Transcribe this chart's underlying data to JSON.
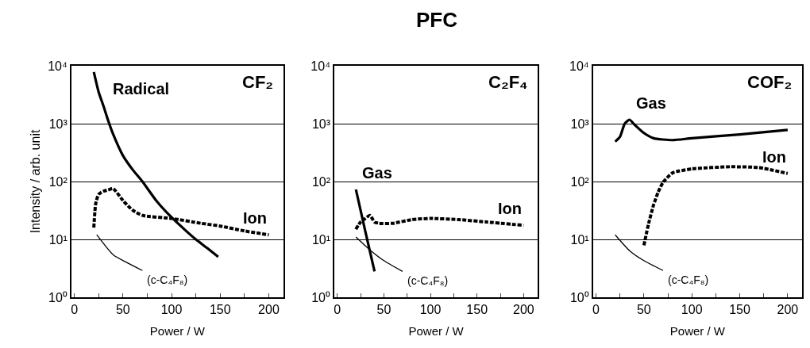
{
  "chart_data": [
    {
      "type": "line",
      "title": "CF₂",
      "xlabel": "Power / W",
      "ylabel": "Intensity / arb. unit",
      "log": "y",
      "grid": "y",
      "xlim": [
        -3,
        215
      ],
      "ylim": [
        1,
        10000
      ],
      "xticks": [
        0,
        {
          "value": 25,
          "label": null
        },
        50,
        {
          "value": 75,
          "label": null
        },
        100,
        {
          "value": 125,
          "label": null
        },
        150,
        {
          "value": 175,
          "label": null
        },
        200
      ],
      "yticks": [
        {
          "value": 1,
          "label": "10⁰"
        },
        {
          "value": 10,
          "label": "10¹"
        },
        {
          "value": 100,
          "label": "10²"
        },
        {
          "value": 1000,
          "label": "10³"
        },
        {
          "value": 10000,
          "label": "10⁴"
        }
      ],
      "series": [
        {
          "name": "Radical",
          "color": "#000000",
          "line_style": "solid",
          "x": [
            20,
            25,
            30,
            35,
            40,
            50,
            60,
            70,
            85,
            100,
            115,
            125,
            137,
            148
          ],
          "values": [
            7800,
            3500,
            2000,
            1100,
            650,
            280,
            160,
            100,
            45,
            24,
            14,
            10,
            7,
            5
          ]
        },
        {
          "name": "Ion",
          "color": "#000000",
          "line_style": "dotted",
          "x": [
            20,
            22,
            25,
            30,
            35,
            40,
            50,
            60,
            70,
            100,
            130,
            150,
            175,
            200
          ],
          "values": [
            16,
            42,
            60,
            68,
            72,
            75,
            47,
            32,
            26,
            23,
            19,
            17,
            14,
            12
          ]
        },
        {
          "name": "(c-C₄F₈)",
          "color": "#000000",
          "line_style": "solid",
          "x": [
            23,
            40,
            55,
            70
          ],
          "values": [
            12,
            5.4,
            3.9,
            2.9
          ]
        }
      ],
      "annotations": [
        "PFC"
      ]
    },
    {
      "type": "line",
      "title": "C₂F₄",
      "xlabel": "Power / W",
      "log": "y",
      "grid": "y",
      "xlim": [
        -3,
        215
      ],
      "ylim": [
        1,
        10000
      ],
      "xticks": [
        0,
        {
          "value": 25,
          "label": null
        },
        50,
        {
          "value": 75,
          "label": null
        },
        100,
        {
          "value": 125,
          "label": null
        },
        150,
        {
          "value": 175,
          "label": null
        },
        200
      ],
      "yticks": [
        {
          "value": 1,
          "label": "10⁰"
        },
        {
          "value": 10,
          "label": "10¹"
        },
        {
          "value": 100,
          "label": "10²"
        },
        {
          "value": 1000,
          "label": "10³"
        },
        {
          "value": 10000,
          "label": "10⁴"
        }
      ],
      "series": [
        {
          "name": "Gas",
          "color": "#000000",
          "line_style": "solid",
          "x": [
            20,
            30,
            40
          ],
          "values": [
            73,
            14,
            2.8
          ]
        },
        {
          "name": "Ion",
          "color": "#000000",
          "line_style": "dotted",
          "x": [
            20,
            25,
            30,
            35,
            40,
            45,
            60,
            80,
            100,
            130,
            160,
            200
          ],
          "values": [
            15,
            20,
            23,
            26,
            20,
            19,
            19,
            22,
            23,
            22,
            20,
            17.5
          ]
        },
        {
          "name": "(c-C₄F₈)",
          "color": "#000000",
          "line_style": "solid",
          "x": [
            20,
            35,
            50,
            70
          ],
          "values": [
            11,
            6.6,
            4.3,
            2.8
          ]
        }
      ]
    },
    {
      "type": "line",
      "title": "COF₂",
      "xlabel": "Power / W",
      "log": "y",
      "grid": "y",
      "xlim": [
        -3,
        215
      ],
      "ylim": [
        1,
        10000
      ],
      "xticks": [
        0,
        {
          "value": 25,
          "label": null
        },
        50,
        {
          "value": 75,
          "label": null
        },
        100,
        {
          "value": 125,
          "label": null
        },
        150,
        {
          "value": 175,
          "label": null
        },
        200
      ],
      "yticks": [
        {
          "value": 1,
          "label": "10⁰"
        },
        {
          "value": 10,
          "label": "10¹"
        },
        {
          "value": 100,
          "label": "10²"
        },
        {
          "value": 1000,
          "label": "10³"
        },
        {
          "value": 10000,
          "label": "10⁴"
        }
      ],
      "series": [
        {
          "name": "Gas",
          "color": "#000000",
          "line_style": "solid",
          "x": [
            20,
            25,
            30,
            35,
            40,
            50,
            60,
            80,
            100,
            150,
            200
          ],
          "values": [
            490,
            590,
            1000,
            1170,
            970,
            690,
            560,
            520,
            560,
            650,
            780
          ]
        },
        {
          "name": "Ion",
          "color": "#000000",
          "line_style": "dotted",
          "x": [
            50,
            55,
            60,
            65,
            70,
            80,
            100,
            140,
            170,
            200
          ],
          "values": [
            7.9,
            19,
            39,
            66,
            97,
            141,
            165,
            180,
            174,
            138
          ]
        },
        {
          "name": "(c-C₄F₈)",
          "color": "#000000",
          "line_style": "solid",
          "x": [
            20,
            35,
            50,
            70
          ],
          "values": [
            12,
            6.4,
            4.3,
            2.9
          ]
        }
      ]
    }
  ]
}
